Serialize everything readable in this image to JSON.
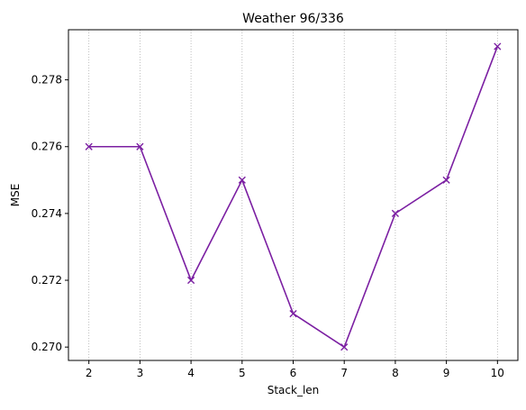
{
  "chart_data": {
    "type": "line",
    "title": "Weather 96/336",
    "xlabel": "Stack_len",
    "ylabel": "MSE",
    "x": [
      2,
      3,
      4,
      5,
      6,
      7,
      8,
      9,
      10
    ],
    "series": [
      {
        "values": [
          0.276,
          0.276,
          0.272,
          0.275,
          0.271,
          0.27,
          0.274,
          0.275,
          0.279
        ],
        "color": "#7b1fa2",
        "marker": "x"
      }
    ],
    "xlim": [
      1.6,
      10.4
    ],
    "ylim": [
      0.2696,
      0.2795
    ],
    "xticks": [
      2,
      3,
      4,
      5,
      6,
      7,
      8,
      9,
      10
    ],
    "yticks": [
      0.27,
      0.272,
      0.274,
      0.276,
      0.278
    ],
    "ytick_labels": [
      "0.270",
      "0.272",
      "0.274",
      "0.276",
      "0.278"
    ],
    "grid": "x-dotted"
  }
}
